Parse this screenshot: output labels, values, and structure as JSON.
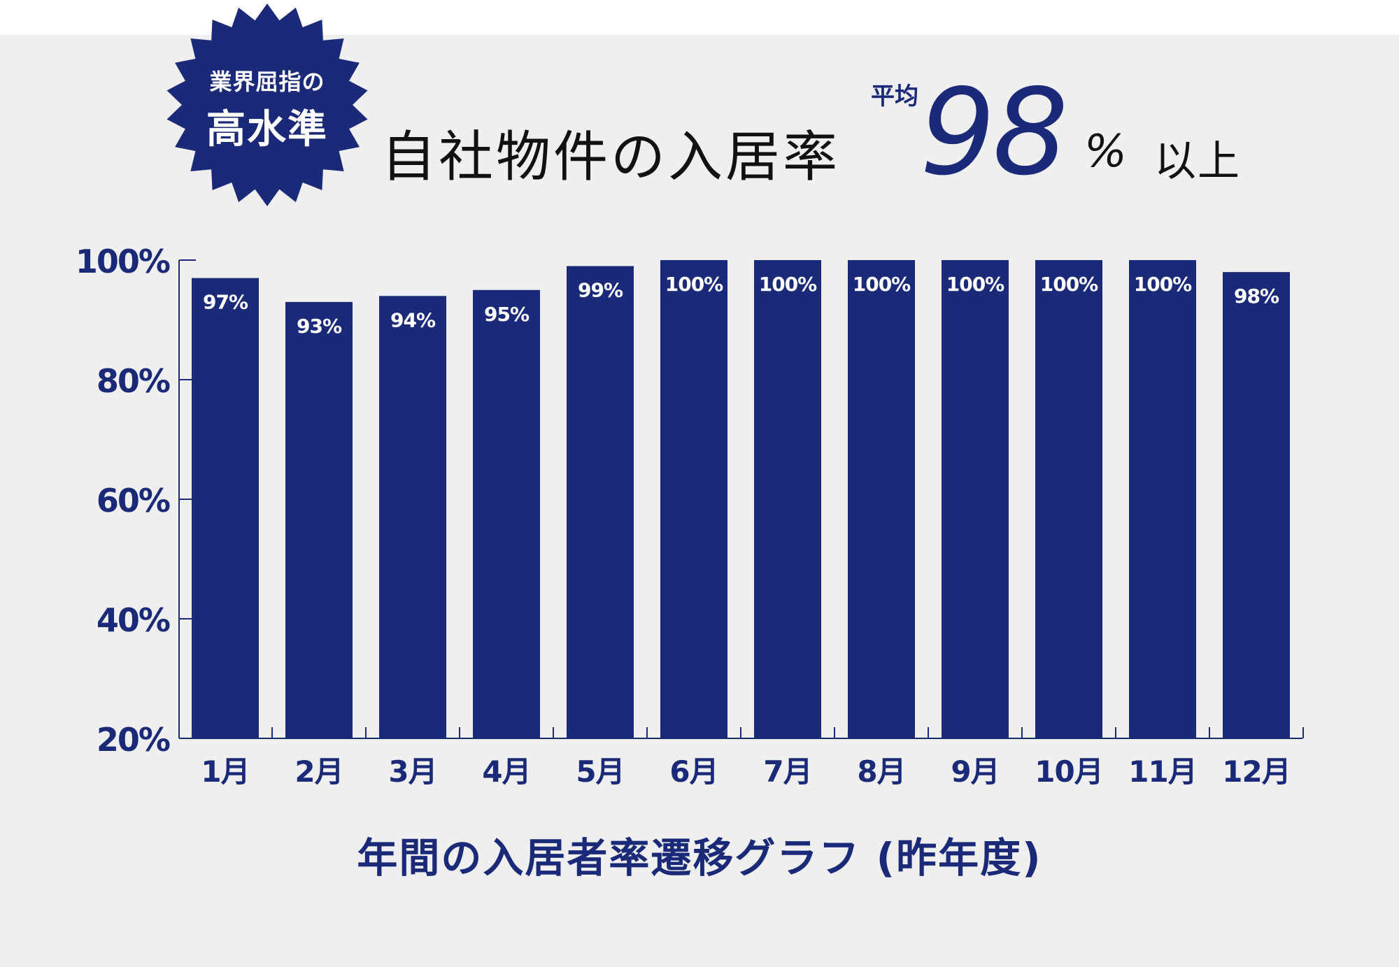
{
  "badge": {
    "line1": "業界屈指の",
    "line2": "高水準"
  },
  "headline": {
    "text": "自社物件の入居率",
    "avg_label": "平均",
    "avg_value": "98",
    "avg_unit": "%",
    "avg_suffix": "以上"
  },
  "colors": {
    "bar": "#1b2a78",
    "text_dark": "#111111",
    "panel": "#efefef"
  },
  "chart_data": {
    "type": "bar",
    "title": "",
    "xlabel": "",
    "ylabel": "",
    "caption": "年間の入居者率遷移グラフ (昨年度)",
    "categories": [
      "1月",
      "2月",
      "3月",
      "4月",
      "5月",
      "6月",
      "7月",
      "8月",
      "9月",
      "10月",
      "11月",
      "12月"
    ],
    "values": [
      97,
      93,
      94,
      95,
      99,
      100,
      100,
      100,
      100,
      100,
      100,
      98
    ],
    "value_labels": [
      "97%",
      "93%",
      "94%",
      "95%",
      "99%",
      "100%",
      "100%",
      "100%",
      "100%",
      "100%",
      "100%",
      "98%"
    ],
    "ylim": [
      20,
      100
    ],
    "yticks": [
      20,
      40,
      60,
      80,
      100
    ],
    "ytick_labels": [
      "20%",
      "40%",
      "60%",
      "80%",
      "100%"
    ],
    "grid": false,
    "legend": "none"
  }
}
